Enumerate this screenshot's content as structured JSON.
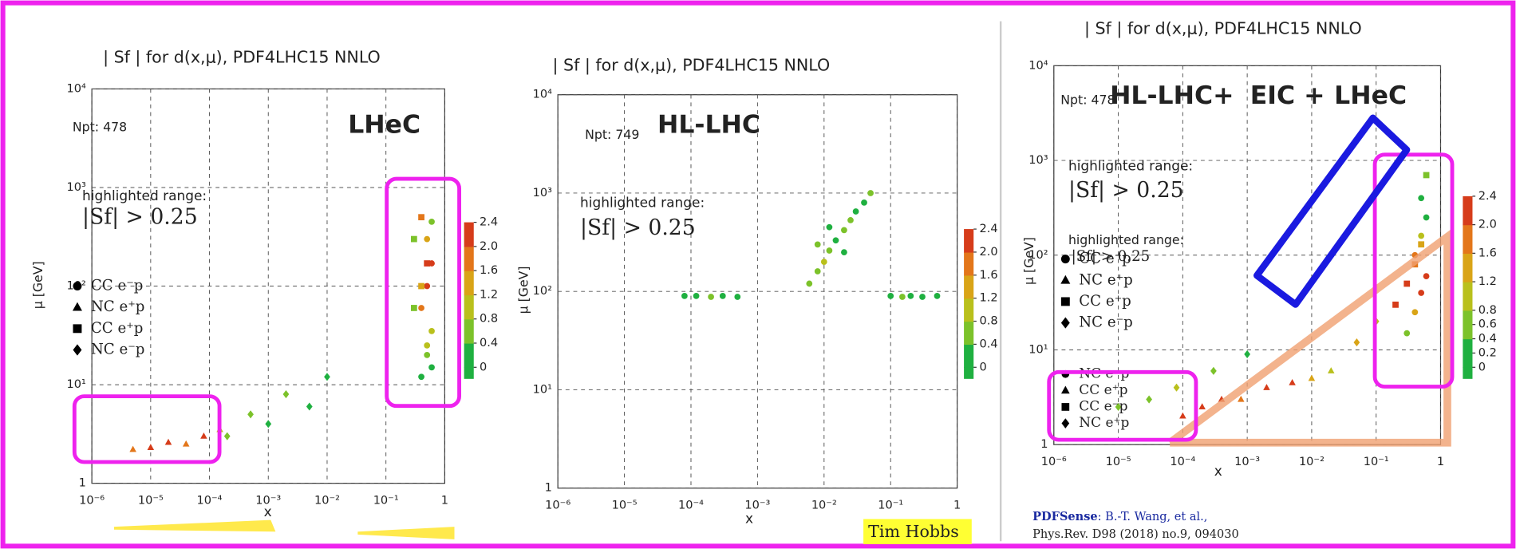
{
  "chart_data": [
    {
      "type": "scatter",
      "title": "| Sf | for d(x,μ),  PDF4LHC15 NNLO",
      "label": "LHeC",
      "npt": "Npt: 478",
      "highlight_label": "highlighted range:",
      "highlight_range": "|Sf| > 0.25",
      "x_label": "x",
      "y_label": "μ [GeV]",
      "log_x": true,
      "log_y": true,
      "grid": true,
      "xlim": [
        1e-06,
        1
      ],
      "ylim": [
        1,
        10000
      ],
      "xticks": [
        {
          "value": 1e-06,
          "label": "10⁻⁶"
        },
        {
          "value": 1e-05,
          "label": "10⁻⁵"
        },
        {
          "value": 0.0001,
          "label": "10⁻⁴"
        },
        {
          "value": 0.001,
          "label": "10⁻³"
        },
        {
          "value": 0.01,
          "label": "10⁻²"
        },
        {
          "value": 0.1,
          "label": "10⁻¹"
        },
        1
      ],
      "yticks": [
        1,
        {
          "value": 10,
          "label": "10¹"
        },
        {
          "value": 100,
          "label": "10²"
        },
        {
          "value": 1000,
          "label": "10³"
        },
        {
          "value": 10000,
          "label": "10⁴"
        }
      ],
      "colorbar_ticks": [
        0,
        0.4,
        0.8,
        1.2,
        1.6,
        {
          "value": 2,
          "label": "2.0"
        },
        2.4
      ],
      "colorscale": [
        "#1fb040",
        "#7cc22a",
        "#b9c01c",
        "#d9a417",
        "#e3761a",
        "#d63c1a"
      ],
      "series": [
        {
          "name": "CC e⁻p",
          "marker": "circle",
          "x": [
            0.4,
            0.5,
            0.6,
            0.4,
            0.5,
            0.6,
            0.5,
            0.6,
            0.6,
            0.5
          ],
          "values": [
            12,
            20,
            35,
            60,
            100,
            170,
            300,
            450,
            15,
            25
          ],
          "color_values": [
            0.2,
            0.4,
            1.0,
            1.6,
            2.4,
            2.0,
            1.2,
            0.6,
            0.3,
            0.8
          ]
        },
        {
          "name": "NC e⁺p",
          "marker": "triangle",
          "x": [
            5e-06,
            1e-05,
            2e-05,
            4e-05,
            8e-05,
            0.00015
          ],
          "values": [
            2.2,
            2.3,
            2.6,
            2.5,
            3,
            3.5
          ],
          "color_values": [
            1.8,
            2.4,
            2.2,
            1.6,
            2.4,
            0.8
          ]
        },
        {
          "name": "CC e⁺p",
          "marker": "square",
          "x": [
            0.3,
            0.4,
            0.5,
            0.3,
            0.4
          ],
          "values": [
            60,
            100,
            170,
            300,
            500
          ],
          "color_values": [
            0.4,
            1.2,
            2.0,
            0.6,
            1.6
          ]
        },
        {
          "name": "NC e⁻p",
          "marker": "diamond",
          "x": [
            0.0002,
            0.0005,
            0.001,
            0.002,
            0.005,
            0.01
          ],
          "values": [
            3,
            5,
            4,
            8,
            6,
            12
          ],
          "color_values": [
            0.6,
            0.4,
            0.2,
            0.5,
            0.3,
            0.3
          ]
        }
      ]
    },
    {
      "type": "scatter",
      "title": "| Sf | for d(x,μ),  PDF4LHC15 NNLO",
      "label": "HL-LHC",
      "npt": "Npt: 749",
      "highlight_label": "highlighted range:",
      "highlight_range": "|Sf| > 0.25",
      "x_label": "x",
      "y_label": "μ [GeV]",
      "log_x": true,
      "log_y": true,
      "grid": true,
      "xlim": [
        1e-06,
        1
      ],
      "ylim": [
        1,
        10000
      ],
      "xticks": [
        {
          "value": 1e-06,
          "label": "10⁻⁶"
        },
        {
          "value": 1e-05,
          "label": "10⁻⁵"
        },
        {
          "value": 0.0001,
          "label": "10⁻⁴"
        },
        {
          "value": 0.001,
          "label": "10⁻³"
        },
        {
          "value": 0.01,
          "label": "10⁻²"
        },
        {
          "value": 0.1,
          "label": "10⁻¹"
        },
        1
      ],
      "yticks": [
        1,
        {
          "value": 10,
          "label": "10¹"
        },
        {
          "value": 100,
          "label": "10²"
        },
        {
          "value": 1000,
          "label": "10³"
        },
        {
          "value": 10000,
          "label": "10⁴"
        }
      ],
      "colorbar_ticks": [
        0,
        0.4,
        0.8,
        1.2,
        1.6,
        {
          "value": 2,
          "label": "2.0"
        },
        2.4
      ],
      "colorscale": [
        "#1fb040",
        "#7cc22a",
        "#b9c01c",
        "#d9a417",
        "#e3761a",
        "#d63c1a"
      ],
      "series": [
        {
          "marker": "circle",
          "x": [
            8e-05,
            0.00012,
            0.0002,
            0.0003,
            0.0005,
            0.1,
            0.15,
            0.2,
            0.3,
            0.5,
            0.006,
            0.008,
            0.01,
            0.012,
            0.015,
            0.02,
            0.025,
            0.03,
            0.04,
            0.05,
            0.008,
            0.012,
            0.02
          ],
          "values": [
            90,
            90,
            88,
            90,
            88,
            90,
            88,
            90,
            88,
            90,
            120,
            160,
            200,
            260,
            330,
            420,
            530,
            650,
            800,
            1000,
            300,
            450,
            250
          ],
          "color_values": [
            0.2,
            0.3,
            0.4,
            0.2,
            0.3,
            0.2,
            0.4,
            0.3,
            0.2,
            0.3,
            0.4,
            0.6,
            0.8,
            0.5,
            0.3,
            0.4,
            0.6,
            0.2,
            0.3,
            0.4,
            0.5,
            0.3,
            0.2
          ]
        }
      ]
    },
    {
      "type": "scatter",
      "title": "| Sf | for d(x,μ),  PDF4LHC15 NNLO",
      "label_parts": [
        "HL-LHC+",
        "EIC +",
        "LHeC"
      ],
      "label_colors": [
        "#1a1ae0",
        "#c02020",
        "#111111"
      ],
      "npt": "Npt: 478",
      "highlight_label": "highlighted range:",
      "highlight_range": "|Sf| > 0.25",
      "overlay_highlight_label": "highlighted range:",
      "overlay_highlight_range": "|Sf| > 0.25",
      "overlay_legend": [
        "NC e⁻p",
        "CC e⁺p",
        "CC e⁻p",
        "NC e⁺p"
      ],
      "x_label": "x",
      "y_label": "μ [GeV]",
      "log_x": true,
      "log_y": true,
      "grid": true,
      "xlim": [
        1e-06,
        1
      ],
      "ylim": [
        1,
        10000
      ],
      "xticks": [
        {
          "value": 1e-06,
          "label": "10⁻⁶"
        },
        {
          "value": 1e-05,
          "label": "10⁻⁵"
        },
        {
          "value": 0.0001,
          "label": "10⁻⁴"
        },
        {
          "value": 0.001,
          "label": "10⁻³"
        },
        {
          "value": 0.01,
          "label": "10⁻²"
        },
        {
          "value": 0.1,
          "label": "10⁻¹"
        },
        1
      ],
      "yticks": [
        1,
        {
          "value": 10,
          "label": "10¹"
        },
        {
          "value": 100,
          "label": "10²"
        },
        {
          "value": 1000,
          "label": "10³"
        },
        {
          "value": 10000,
          "label": "10⁴"
        }
      ],
      "colorbar_ticks": [
        0,
        0.2,
        0.4,
        0.6,
        0.8,
        1.2,
        1.6,
        {
          "value": 2,
          "label": "2.0"
        },
        2.4
      ],
      "colorscale": [
        "#1fb040",
        "#7cc22a",
        "#b9c01c",
        "#d9a417",
        "#e3761a",
        "#d63c1a"
      ],
      "series": [
        {
          "name": "CC e⁻p",
          "marker": "circle",
          "x": [
            0.3,
            0.4,
            0.5,
            0.6,
            0.4,
            0.5,
            0.6,
            0.5
          ],
          "values": [
            15,
            25,
            40,
            60,
            100,
            160,
            250,
            400
          ],
          "color_values": [
            0.4,
            1.2,
            2.4,
            2.0,
            1.6,
            0.8,
            0.3,
            0.2
          ]
        },
        {
          "name": "NC e⁺p",
          "marker": "triangle",
          "x": [
            0.0001,
            0.0002,
            0.0004,
            0.0008,
            0.002,
            0.005,
            0.01,
            0.02
          ],
          "values": [
            2,
            2.5,
            3,
            3,
            4,
            4.5,
            5,
            6
          ],
          "color_values": [
            2.4,
            2.0,
            2.4,
            1.6,
            2.0,
            2.4,
            1.2,
            0.8
          ]
        },
        {
          "name": "CC e⁺p",
          "marker": "square",
          "x": [
            0.2,
            0.3,
            0.4,
            0.5,
            0.6
          ],
          "values": [
            30,
            50,
            80,
            130,
            700
          ],
          "color_values": [
            2.4,
            2.0,
            1.6,
            1.2,
            0.4
          ]
        },
        {
          "name": "NC e⁻p",
          "marker": "diamond",
          "x": [
            1e-05,
            3e-05,
            8e-05,
            0.0003,
            0.001,
            0.05,
            0.1
          ],
          "values": [
            2.5,
            3,
            4,
            6,
            9,
            12,
            20
          ],
          "color_values": [
            0.6,
            0.4,
            0.8,
            0.6,
            0.2,
            1.2,
            0.8
          ]
        }
      ]
    }
  ],
  "credit": "Tim Hobbs",
  "citation": {
    "bold": "PDFSense",
    "authors": ": B.-T. Wang, et al.,",
    "journal": "Phys.Rev. D98 (2018) no.9, 094030"
  }
}
